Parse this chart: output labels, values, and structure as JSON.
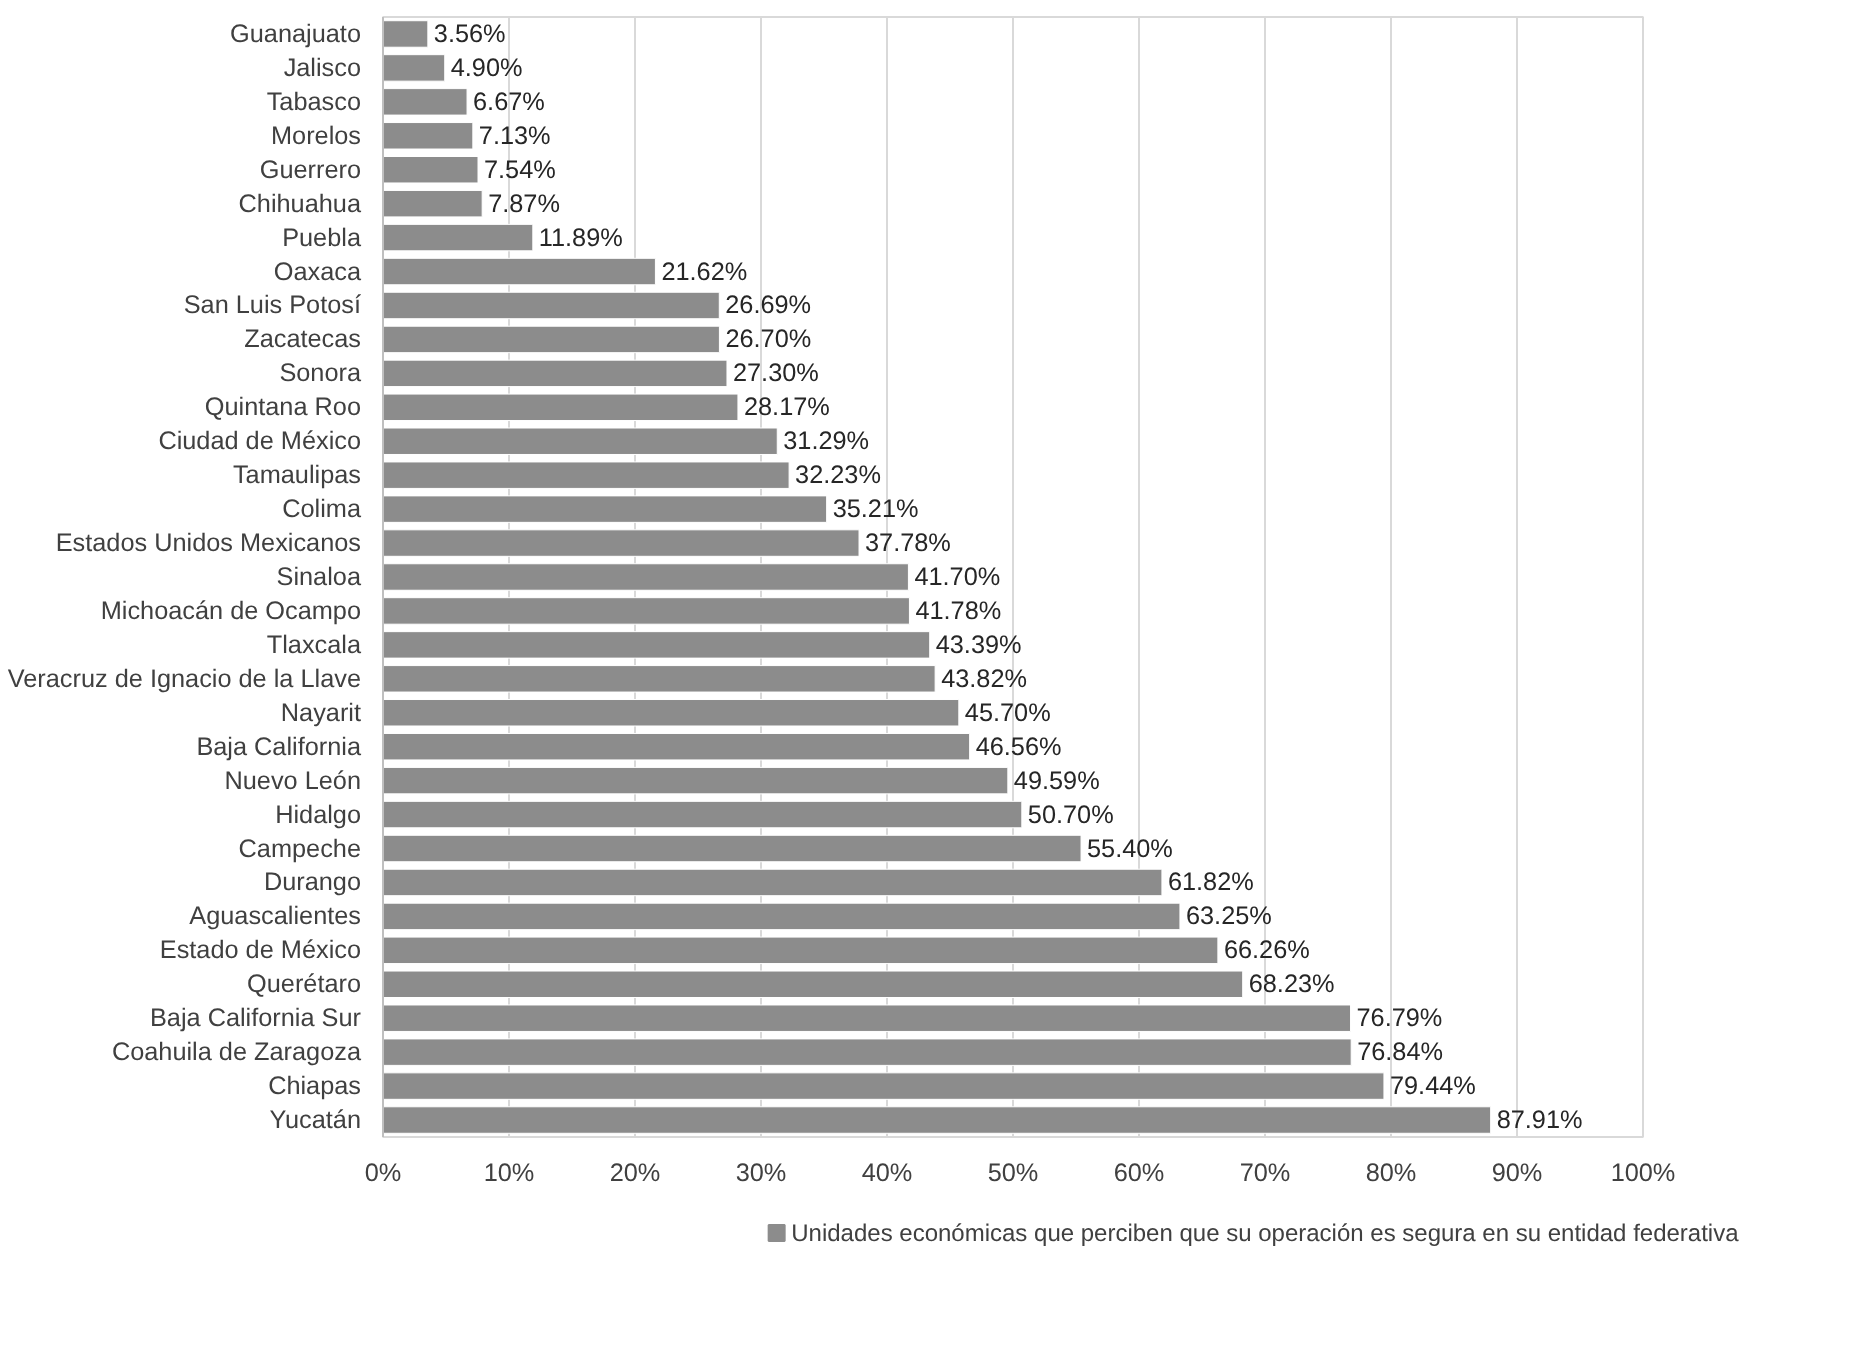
{
  "chart_data": {
    "type": "bar",
    "orientation": "horizontal",
    "categories": [
      "Guanajuato",
      "Jalisco",
      "Tabasco",
      "Morelos",
      "Guerrero",
      "Chihuahua",
      "Puebla",
      "Oaxaca",
      "San Luis Potosí",
      "Zacatecas",
      "Sonora",
      "Quintana Roo",
      "Ciudad de México",
      "Tamaulipas",
      "Colima",
      "Estados Unidos Mexicanos",
      "Sinaloa",
      "Michoacán de Ocampo",
      "Tlaxcala",
      "Veracruz de Ignacio de la Llave",
      "Nayarit",
      "Baja California",
      "Nuevo León",
      "Hidalgo",
      "Campeche",
      "Durango",
      "Aguascalientes",
      "Estado de México",
      "Querétaro",
      "Baja California Sur",
      "Coahuila de Zaragoza",
      "Chiapas",
      "Yucatán"
    ],
    "series": [
      {
        "name": "Unidades económicas que perciben que su operación es segura en su entidad federativa",
        "color": "#8c8c8c",
        "values": [
          3.56,
          4.9,
          6.67,
          7.13,
          7.54,
          7.87,
          11.89,
          21.62,
          26.69,
          26.7,
          27.3,
          28.17,
          31.29,
          32.23,
          35.21,
          37.78,
          41.7,
          41.78,
          43.39,
          43.82,
          45.7,
          46.56,
          49.59,
          50.7,
          55.4,
          61.82,
          63.25,
          66.26,
          68.23,
          76.79,
          76.84,
          79.44,
          87.91
        ],
        "value_labels": [
          "3.56%",
          "4.90%",
          "6.67%",
          "7.13%",
          "7.54%",
          "7.87%",
          "11.89%",
          "21.62%",
          "26.69%",
          "26.70%",
          "27.30%",
          "28.17%",
          "31.29%",
          "32.23%",
          "35.21%",
          "37.78%",
          "41.70%",
          "41.78%",
          "43.39%",
          "43.82%",
          "45.70%",
          "46.56%",
          "49.59%",
          "50.70%",
          "55.40%",
          "61.82%",
          "63.25%",
          "66.26%",
          "68.23%",
          "76.79%",
          "76.84%",
          "79.44%",
          "87.91%"
        ]
      }
    ],
    "xlim": [
      0,
      100
    ],
    "xticks": [
      {
        "value": 0,
        "label": "0%"
      },
      {
        "value": 10,
        "label": "10%"
      },
      {
        "value": 20,
        "label": "20%"
      },
      {
        "value": 30,
        "label": "30%"
      },
      {
        "value": 40,
        "label": "40%"
      },
      {
        "value": 50,
        "label": "50%"
      },
      {
        "value": 60,
        "label": "60%"
      },
      {
        "value": 70,
        "label": "70%"
      },
      {
        "value": 80,
        "label": "80%"
      },
      {
        "value": 90,
        "label": "90%"
      },
      {
        "value": 100,
        "label": "100%"
      }
    ],
    "grid": "x",
    "legend": "bottom"
  }
}
